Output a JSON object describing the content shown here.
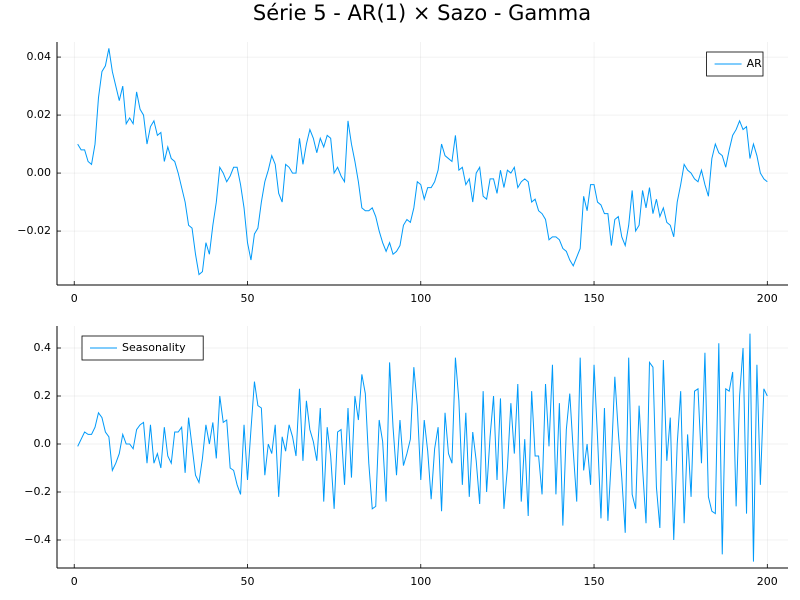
{
  "title": "Série 5 - AR(1) × Sazo - Gamma",
  "chart_data": [
    {
      "type": "line",
      "x": [
        1,
        2,
        3,
        4,
        5,
        6,
        7,
        8,
        9,
        10,
        11,
        12,
        13,
        14,
        15,
        16,
        17,
        18,
        19,
        20,
        21,
        22,
        23,
        24,
        25,
        26,
        27,
        28,
        29,
        30,
        31,
        32,
        33,
        34,
        35,
        36,
        37,
        38,
        39,
        40,
        41,
        42,
        43,
        44,
        45,
        46,
        47,
        48,
        49,
        50,
        51,
        52,
        53,
        54,
        55,
        56,
        57,
        58,
        59,
        60,
        61,
        62,
        63,
        64,
        65,
        66,
        67,
        68,
        69,
        70,
        71,
        72,
        73,
        74,
        75,
        76,
        77,
        78,
        79,
        80,
        81,
        82,
        83,
        84,
        85,
        86,
        87,
        88,
        89,
        90,
        91,
        92,
        93,
        94,
        95,
        96,
        97,
        98,
        99,
        100,
        101,
        102,
        103,
        104,
        105,
        106,
        107,
        108,
        109,
        110,
        111,
        112,
        113,
        114,
        115,
        116,
        117,
        118,
        119,
        120,
        121,
        122,
        123,
        124,
        125,
        126,
        127,
        128,
        129,
        130,
        131,
        132,
        133,
        134,
        135,
        136,
        137,
        138,
        139,
        140,
        141,
        142,
        143,
        144,
        145,
        146,
        147,
        148,
        149,
        150,
        151,
        152,
        153,
        154,
        155,
        156,
        157,
        158,
        159,
        160,
        161,
        162,
        163,
        164,
        165,
        166,
        167,
        168,
        169,
        170,
        171,
        172,
        173,
        174,
        175,
        176,
        177,
        178,
        179,
        180,
        181,
        182,
        183,
        184,
        185,
        186,
        187,
        188,
        189,
        190,
        191,
        192,
        193,
        194,
        195,
        196,
        197,
        198,
        199,
        200
      ],
      "series": [
        {
          "name": "AR",
          "color": "#009af9",
          "values": [
            0.01,
            0.008,
            0.008,
            0.004,
            0.003,
            0.01,
            0.026,
            0.035,
            0.037,
            0.043,
            0.035,
            0.03,
            0.025,
            0.03,
            0.017,
            0.019,
            0.017,
            0.028,
            0.022,
            0.02,
            0.01,
            0.016,
            0.018,
            0.013,
            0.014,
            0.004,
            0.009,
            0.005,
            0.004,
            0.0,
            -0.005,
            -0.01,
            -0.018,
            -0.019,
            -0.028,
            -0.035,
            -0.034,
            -0.024,
            -0.028,
            -0.018,
            -0.01,
            0.002,
            0.0,
            -0.003,
            -0.001,
            0.002,
            0.002,
            -0.004,
            -0.012,
            -0.024,
            -0.03,
            -0.021,
            -0.019,
            -0.01,
            -0.003,
            0.001,
            0.006,
            0.003,
            -0.007,
            -0.01,
            0.003,
            0.002,
            0.0,
            0.0,
            0.012,
            0.003,
            0.01,
            0.015,
            0.012,
            0.007,
            0.012,
            0.009,
            0.013,
            0.012,
            0.0,
            0.002,
            -0.001,
            -0.003,
            0.018,
            0.01,
            0.004,
            -0.003,
            -0.012,
            -0.013,
            -0.013,
            -0.012,
            -0.015,
            -0.02,
            -0.024,
            -0.027,
            -0.024,
            -0.028,
            -0.027,
            -0.025,
            -0.018,
            -0.016,
            -0.017,
            -0.012,
            -0.003,
            -0.004,
            -0.009,
            -0.005,
            -0.005,
            -0.003,
            0.001,
            0.01,
            0.006,
            0.005,
            0.004,
            0.013,
            0.001,
            0.002,
            -0.004,
            -0.002,
            -0.01,
            0.0,
            0.002,
            -0.008,
            -0.009,
            -0.002,
            -0.002,
            -0.007,
            0.001,
            -0.005,
            0.001,
            0.0,
            0.002,
            -0.005,
            -0.003,
            -0.002,
            -0.003,
            -0.01,
            -0.009,
            -0.013,
            -0.014,
            -0.016,
            -0.023,
            -0.022,
            -0.022,
            -0.023,
            -0.026,
            -0.027,
            -0.03,
            -0.032,
            -0.029,
            -0.026,
            -0.008,
            -0.013,
            -0.004,
            -0.004,
            -0.01,
            -0.011,
            -0.014,
            -0.014,
            -0.025,
            -0.016,
            -0.015,
            -0.022,
            -0.025,
            -0.018,
            -0.006,
            -0.02,
            -0.018,
            -0.006,
            -0.012,
            -0.005,
            -0.014,
            -0.009,
            -0.015,
            -0.012,
            -0.017,
            -0.018,
            -0.022,
            -0.01,
            -0.004,
            0.003,
            0.001,
            0.0,
            -0.002,
            -0.003,
            0.001,
            -0.004,
            -0.008,
            0.005,
            0.01,
            0.007,
            0.006,
            0.002,
            0.008,
            0.013,
            0.015,
            0.018,
            0.015,
            0.016,
            0.005,
            0.01,
            0.006,
            0.0,
            -0.002,
            -0.003
          ]
        }
      ],
      "xlim": [
        -4.97,
        205.97
      ],
      "ylim": [
        -0.0386,
        0.0452
      ],
      "xticks": [
        0,
        50,
        100,
        150,
        200
      ],
      "yticks": [
        {
          "value": -0.02,
          "label": "−0.02"
        },
        {
          "value": 0,
          "label": "0.00"
        },
        {
          "value": 0.02,
          "label": "0.02"
        },
        {
          "value": 0.04,
          "label": "0.04"
        }
      ],
      "grid": true,
      "legend": "topright"
    },
    {
      "type": "line",
      "x": [
        1,
        2,
        3,
        4,
        5,
        6,
        7,
        8,
        9,
        10,
        11,
        12,
        13,
        14,
        15,
        16,
        17,
        18,
        19,
        20,
        21,
        22,
        23,
        24,
        25,
        26,
        27,
        28,
        29,
        30,
        31,
        32,
        33,
        34,
        35,
        36,
        37,
        38,
        39,
        40,
        41,
        42,
        43,
        44,
        45,
        46,
        47,
        48,
        49,
        50,
        51,
        52,
        53,
        54,
        55,
        56,
        57,
        58,
        59,
        60,
        61,
        62,
        63,
        64,
        65,
        66,
        67,
        68,
        69,
        70,
        71,
        72,
        73,
        74,
        75,
        76,
        77,
        78,
        79,
        80,
        81,
        82,
        83,
        84,
        85,
        86,
        87,
        88,
        89,
        90,
        91,
        92,
        93,
        94,
        95,
        96,
        97,
        98,
        99,
        100,
        101,
        102,
        103,
        104,
        105,
        106,
        107,
        108,
        109,
        110,
        111,
        112,
        113,
        114,
        115,
        116,
        117,
        118,
        119,
        120,
        121,
        122,
        123,
        124,
        125,
        126,
        127,
        128,
        129,
        130,
        131,
        132,
        133,
        134,
        135,
        136,
        137,
        138,
        139,
        140,
        141,
        142,
        143,
        144,
        145,
        146,
        147,
        148,
        149,
        150,
        151,
        152,
        153,
        154,
        155,
        156,
        157,
        158,
        159,
        160,
        161,
        162,
        163,
        164,
        165,
        166,
        167,
        168,
        169,
        170,
        171,
        172,
        173,
        174,
        175,
        176,
        177,
        178,
        179,
        180,
        181,
        182,
        183,
        184,
        185,
        186,
        187,
        188,
        189,
        190,
        191,
        192,
        193,
        194,
        195,
        196,
        197,
        198,
        199,
        200
      ],
      "series": [
        {
          "name": "Seasonality",
          "color": "#009af9",
          "values": [
            -0.01,
            0.02,
            0.05,
            0.04,
            0.04,
            0.07,
            0.13,
            0.11,
            0.05,
            0.03,
            -0.11,
            -0.08,
            -0.04,
            0.04,
            0.0,
            0.0,
            -0.02,
            0.06,
            0.08,
            0.09,
            -0.08,
            0.08,
            -0.08,
            -0.04,
            -0.1,
            0.07,
            -0.05,
            -0.08,
            0.05,
            0.05,
            0.07,
            -0.12,
            0.11,
            -0.01,
            -0.13,
            -0.16,
            -0.06,
            0.08,
            0.0,
            0.09,
            -0.06,
            0.2,
            0.09,
            0.1,
            -0.1,
            -0.11,
            -0.17,
            -0.21,
            0.08,
            -0.15,
            0.06,
            0.26,
            0.16,
            0.15,
            -0.13,
            0.0,
            -0.04,
            0.08,
            -0.22,
            0.03,
            -0.03,
            0.08,
            0.03,
            -0.05,
            0.23,
            -0.07,
            0.18,
            0.06,
            0.01,
            -0.07,
            0.15,
            -0.24,
            0.07,
            -0.05,
            -0.27,
            0.05,
            0.06,
            -0.17,
            0.15,
            -0.14,
            0.2,
            0.1,
            0.29,
            0.21,
            -0.08,
            -0.27,
            -0.26,
            0.1,
            0.01,
            -0.24,
            0.34,
            0.07,
            -0.13,
            0.1,
            -0.09,
            -0.04,
            0.02,
            0.32,
            0.16,
            -0.15,
            0.1,
            -0.03,
            -0.23,
            -0.02,
            0.07,
            -0.28,
            0.13,
            -0.04,
            -0.08,
            0.36,
            0.18,
            -0.17,
            0.13,
            -0.22,
            0.05,
            -0.07,
            -0.25,
            0.22,
            -0.2,
            0.03,
            0.2,
            -0.15,
            0.19,
            -0.27,
            -0.1,
            0.17,
            -0.04,
            0.25,
            -0.24,
            0.02,
            -0.3,
            0.22,
            -0.05,
            -0.05,
            -0.21,
            0.25,
            -0.01,
            0.33,
            -0.21,
            0.17,
            -0.34,
            0.06,
            0.21,
            -0.03,
            -0.24,
            0.36,
            -0.11,
            0.0,
            -0.17,
            0.33,
            0.03,
            -0.31,
            0.15,
            -0.32,
            -0.06,
            0.28,
            0.05,
            -0.14,
            -0.37,
            0.36,
            -0.21,
            -0.27,
            0.16,
            -0.1,
            -0.33,
            0.34,
            0.32,
            -0.18,
            -0.35,
            0.35,
            -0.07,
            0.11,
            -0.4,
            0.0,
            0.22,
            -0.33,
            0.04,
            -0.22,
            0.22,
            0.23,
            -0.08,
            0.38,
            -0.22,
            -0.28,
            -0.29,
            0.42,
            -0.46,
            0.23,
            0.22,
            0.3,
            -0.26,
            0.2,
            0.4,
            -0.29,
            0.46,
            -0.49,
            0.33,
            -0.17,
            0.23,
            0.2
          ]
        }
      ],
      "xlim": [
        -4.97,
        205.97
      ],
      "ylim": [
        -0.5167,
        0.4917
      ],
      "xticks": [
        0,
        50,
        100,
        150,
        200
      ],
      "yticks": [
        {
          "value": -0.4,
          "label": "−0.4"
        },
        {
          "value": -0.2,
          "label": "−0.2"
        },
        {
          "value": 0,
          "label": "0.0"
        },
        {
          "value": 0.2,
          "label": "0.2"
        },
        {
          "value": 0.4,
          "label": "0.4"
        }
      ],
      "grid": true,
      "legend": "topleft"
    }
  ]
}
